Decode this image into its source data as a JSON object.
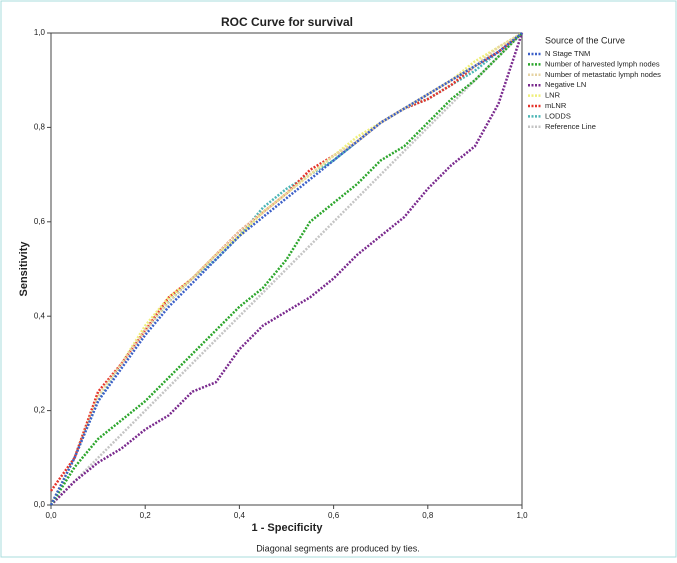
{
  "chart_data": {
    "type": "line",
    "title": "ROC Curve for survival",
    "x_label": "1 - Specificity",
    "y_label": "Sensitivity",
    "note": "Diagonal segments are produced by ties.",
    "legend_title": "Source of the Curve",
    "legend": "right",
    "x": [
      0,
      0.05,
      0.1,
      0.15,
      0.2,
      0.25,
      0.3,
      0.35,
      0.4,
      0.45,
      0.5,
      0.55,
      0.6,
      0.65,
      0.7,
      0.75,
      0.8,
      0.85,
      0.9,
      0.95,
      1
    ],
    "series": [
      {
        "name": "N Stage TNM",
        "color": "#3b5fc8",
        "values": [
          0,
          0.1,
          0.22,
          0.29,
          0.36,
          0.42,
          0.47,
          0.52,
          0.57,
          0.61,
          0.65,
          0.69,
          0.73,
          0.77,
          0.81,
          0.84,
          0.87,
          0.9,
          0.93,
          0.96,
          1
        ]
      },
      {
        "name": "Number of harvested lymph nodes",
        "color": "#2ca62c",
        "values": [
          0,
          0.08,
          0.14,
          0.18,
          0.22,
          0.27,
          0.32,
          0.37,
          0.42,
          0.46,
          0.52,
          0.6,
          0.64,
          0.68,
          0.73,
          0.76,
          0.81,
          0.86,
          0.9,
          0.95,
          1
        ]
      },
      {
        "name": "Number of metastatic lymph nodes",
        "color": "#e6d3a3",
        "values": [
          0,
          0.1,
          0.23,
          0.3,
          0.37,
          0.43,
          0.48,
          0.53,
          0.58,
          0.62,
          0.66,
          0.7,
          0.74,
          0.77,
          0.81,
          0.84,
          0.87,
          0.9,
          0.93,
          0.97,
          1
        ]
      },
      {
        "name": "Negative LN",
        "color": "#7a2a8e",
        "values": [
          0,
          0.05,
          0.09,
          0.12,
          0.16,
          0.19,
          0.24,
          0.26,
          0.33,
          0.38,
          0.41,
          0.44,
          0.48,
          0.53,
          0.57,
          0.61,
          0.67,
          0.72,
          0.76,
          0.85,
          1
        ]
      },
      {
        "name": "LNR",
        "color": "#efef7a",
        "values": [
          0,
          0.1,
          0.23,
          0.3,
          0.38,
          0.44,
          0.48,
          0.53,
          0.57,
          0.62,
          0.66,
          0.7,
          0.74,
          0.78,
          0.81,
          0.84,
          0.87,
          0.9,
          0.94,
          0.97,
          1
        ]
      },
      {
        "name": "mLNR",
        "color": "#e5332a",
        "values": [
          0.03,
          0.1,
          0.24,
          0.3,
          0.37,
          0.44,
          0.48,
          0.53,
          0.58,
          0.62,
          0.66,
          0.71,
          0.74,
          0.77,
          0.81,
          0.84,
          0.86,
          0.89,
          0.93,
          0.96,
          1
        ]
      },
      {
        "name": "LODDS",
        "color": "#4db6b6",
        "values": [
          0,
          0.1,
          0.22,
          0.3,
          0.37,
          0.43,
          0.48,
          0.52,
          0.57,
          0.63,
          0.67,
          0.7,
          0.73,
          0.77,
          0.81,
          0.84,
          0.86,
          0.89,
          0.92,
          0.96,
          1
        ]
      },
      {
        "name": "Reference Line",
        "color": "#c4c4c4",
        "values": [
          0,
          0.05,
          0.1,
          0.15,
          0.2,
          0.25,
          0.3,
          0.35,
          0.4,
          0.45,
          0.5,
          0.55,
          0.6,
          0.65,
          0.7,
          0.75,
          0.8,
          0.85,
          0.9,
          0.95,
          1
        ]
      }
    ],
    "xlim": [
      0,
      1
    ],
    "ylim": [
      0,
      1
    ],
    "xticks": [
      {
        "value": 0,
        "label": "0,0"
      },
      {
        "value": 0.2,
        "label": "0,2"
      },
      {
        "value": 0.4,
        "label": "0,4"
      },
      {
        "value": 0.6,
        "label": "0,6"
      },
      {
        "value": 0.8,
        "label": "0,8"
      },
      {
        "value": 1,
        "label": "1,0"
      }
    ],
    "yticks": [
      {
        "value": 0,
        "label": "0,0"
      },
      {
        "value": 0.2,
        "label": "0,2"
      },
      {
        "value": 0.4,
        "label": "0,4"
      },
      {
        "value": 0.6,
        "label": "0,6"
      },
      {
        "value": 0.8,
        "label": "0,8"
      },
      {
        "value": 1,
        "label": "1,0"
      }
    ]
  }
}
